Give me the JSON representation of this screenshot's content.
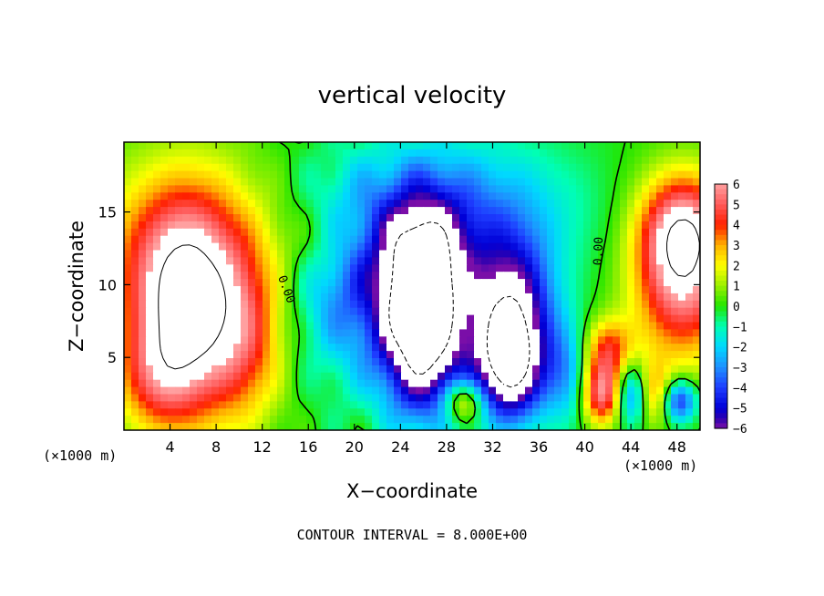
{
  "chart_data": {
    "type": "heatmap",
    "title": "vertical velocity",
    "xlabel": "X−coordinate",
    "ylabel": "Z−coordinate",
    "x_unit_left": "(×1000 m)",
    "x_unit_right": "(×1000 m)",
    "footer": "CONTOUR INTERVAL = 8.000E+00",
    "xlim": [
      0,
      50
    ],
    "ylim": [
      0,
      19.8
    ],
    "x_ticks": [
      4,
      8,
      12,
      16,
      20,
      24,
      28,
      32,
      36,
      40,
      44,
      48
    ],
    "x_tick_labels": [
      "4",
      "8",
      "12",
      "16",
      "20",
      "24",
      "28",
      "32",
      "36",
      "40",
      "44",
      "48"
    ],
    "y_ticks": [
      5,
      10,
      15
    ],
    "y_tick_labels": [
      "5",
      "10",
      "15"
    ],
    "colorbar": {
      "min": -6,
      "max": 6,
      "labels": [
        "6",
        "5",
        "4",
        "3",
        "2",
        "1",
        "0",
        "−1",
        "−2",
        "−3",
        "−4",
        "−5",
        "−6"
      ],
      "stops": [
        {
          "v": -6,
          "c": "#7a0ea8"
        },
        {
          "v": -5.5,
          "c": "#2a00b0"
        },
        {
          "v": -5,
          "c": "#0000d8"
        },
        {
          "v": -4,
          "c": "#1e3cff"
        },
        {
          "v": -3,
          "c": "#1e90ff"
        },
        {
          "v": -2,
          "c": "#00d8ff"
        },
        {
          "v": -1,
          "c": "#00ffb4"
        },
        {
          "v": 0,
          "c": "#22e600"
        },
        {
          "v": 1,
          "c": "#9bf000"
        },
        {
          "v": 2,
          "c": "#ffff00"
        },
        {
          "v": 3,
          "c": "#ffb000"
        },
        {
          "v": 4,
          "c": "#ff2000"
        },
        {
          "v": 5,
          "c": "#ff5a5a"
        },
        {
          "v": 6,
          "c": "#ffa0a0"
        }
      ]
    },
    "contour_labels": [
      {
        "text": "0.00",
        "x": 13.8,
        "z": 9.6
      },
      {
        "text": "0.00",
        "x": 41.5,
        "z": 12.3
      }
    ],
    "field_features": [
      {
        "x": 5.5,
        "z": 12.0,
        "sx": 5.5,
        "sz": 4.5,
        "a": 4
      },
      {
        "x": 5.2,
        "z": 7.5,
        "sx": 3.0,
        "sz": 5.0,
        "a": 6
      },
      {
        "x": 10.5,
        "z": 6.0,
        "sx": 2.5,
        "sz": 4.0,
        "a": 3.5
      },
      {
        "x": 2.5,
        "z": 3.5,
        "sx": 2.5,
        "sz": 2.5,
        "a": 2.5
      },
      {
        "x": 20.0,
        "z": 10.0,
        "sx": 4.0,
        "sz": 4.5,
        "a": -3.5
      },
      {
        "x": 26.0,
        "z": 11.0,
        "sx": 2.5,
        "sz": 3.5,
        "a": -7
      },
      {
        "x": 26.0,
        "z": 5.5,
        "sx": 2.5,
        "sz": 3.5,
        "a": -7
      },
      {
        "x": 33.5,
        "z": 8.0,
        "sx": 2.5,
        "sz": 3.5,
        "a": -7
      },
      {
        "x": 33.5,
        "z": 4.0,
        "sx": 2.0,
        "sz": 2.5,
        "a": -6
      },
      {
        "x": 29.0,
        "z": 15.0,
        "sx": 7.0,
        "sz": 3.5,
        "a": -3
      },
      {
        "x": 29.5,
        "z": 2.0,
        "sx": 1.2,
        "sz": 1.0,
        "a": 4
      },
      {
        "x": 18.0,
        "z": 13.0,
        "sx": 3.0,
        "sz": 2.0,
        "a": 1.5
      },
      {
        "x": 41.5,
        "z": 2.5,
        "sx": 1.2,
        "sz": 1.5,
        "a": 6
      },
      {
        "x": 42.0,
        "z": 5.5,
        "sx": 1.5,
        "sz": 1.5,
        "a": 4
      },
      {
        "x": 44.0,
        "z": 2.5,
        "sx": 1.0,
        "sz": 1.5,
        "a": -4
      },
      {
        "x": 46.0,
        "z": 2.5,
        "sx": 1.0,
        "sz": 1.5,
        "a": 3
      },
      {
        "x": 48.5,
        "z": 10.5,
        "sx": 3.0,
        "sz": 4.0,
        "a": 6
      },
      {
        "x": 48.5,
        "z": 14.0,
        "sx": 2.5,
        "sz": 2.5,
        "a": 4
      },
      {
        "x": 48.2,
        "z": 2.0,
        "sx": 1.0,
        "sz": 1.0,
        "a": -5
      },
      {
        "x": 38.5,
        "z": 4.0,
        "sx": 1.5,
        "sz": 2.5,
        "a": -2.5
      }
    ],
    "grid": false,
    "legend": "colorbar-right"
  }
}
